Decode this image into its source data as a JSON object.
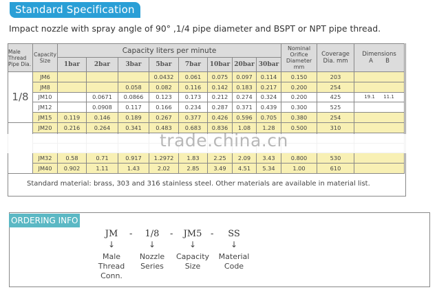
{
  "header": {
    "title": "Standard Specification",
    "intro": "Impact nozzle with spray angle of  90° ,1/4 pipe diameter and BSPT or NPT pipe thread."
  },
  "table": {
    "col_pipe": "Male Thread Pipe Dia.",
    "col_size": "Capacity Size",
    "capacity_group": "Capacity  liters per minute",
    "pressures": [
      "1bar",
      "2bar",
      "3bar",
      "5bar",
      "7bar",
      "10bar",
      "20bar",
      "30bar"
    ],
    "col_orifice": "Nominal Orifice Diameter mm",
    "col_coverage": "Coverage Dia. mm",
    "col_dims": "Dimensions",
    "dim_a": "A",
    "dim_b": "B",
    "pipe_group_1": "1/8",
    "rows": [
      {
        "size": "JM6",
        "v": [
          "",
          "",
          "",
          "0.0432",
          "0.061",
          "0.075",
          "0.097",
          "0.114"
        ],
        "orifice": "0.150",
        "coverage": "203",
        "a": "",
        "b": ""
      },
      {
        "size": "JM8",
        "v": [
          "",
          "",
          "0.058",
          "0.082",
          "0.116",
          "0.142",
          "0.183",
          "0.217"
        ],
        "orifice": "0.200",
        "coverage": "254",
        "a": "",
        "b": ""
      },
      {
        "size": "JM10",
        "v": [
          "",
          "0.0671",
          "0.0866",
          "0.123",
          "0.173",
          "0.212",
          "0.274",
          "0.324"
        ],
        "orifice": "0.200",
        "coverage": "425",
        "a": "19.1",
        "b": "11.1"
      },
      {
        "size": "JM12",
        "v": [
          "",
          "0.0908",
          "0.117",
          "0.166",
          "0.234",
          "0.287",
          "0.371",
          "0.439"
        ],
        "orifice": "0.300",
        "coverage": "525",
        "a": "",
        "b": ""
      },
      {
        "size": "JM15",
        "v": [
          "0.119",
          "0.146",
          "0.189",
          "0.267",
          "0.377",
          "0.426",
          "0.596",
          "0.705"
        ],
        "orifice": "0.380",
        "coverage": "254",
        "a": "",
        "b": ""
      },
      {
        "size": "JM20",
        "v": [
          "0.216",
          "0.264",
          "0.341",
          "0.483",
          "0.683",
          "0.836",
          "1.08",
          "1.28"
        ],
        "orifice": "0.500",
        "coverage": "310",
        "a": "",
        "b": ""
      },
      {
        "size": "",
        "v": [
          "",
          "",
          "",
          "",
          "",
          "",
          "",
          ""
        ],
        "orifice": "",
        "coverage": "",
        "a": "",
        "b": ""
      },
      {
        "size": "",
        "v": [
          "",
          "",
          "",
          "",
          "",
          "",
          "",
          ""
        ],
        "orifice": "",
        "coverage": "",
        "a": "",
        "b": ""
      },
      {
        "size": "JM32",
        "v": [
          "0.58",
          "0.71",
          "0.917",
          "1.2972",
          "1.83",
          "2.25",
          "2.09",
          "3.43"
        ],
        "orifice": "0.800",
        "coverage": "530",
        "a": "",
        "b": ""
      },
      {
        "size": "JM40",
        "v": [
          "0.902",
          "1.11",
          "1.43",
          "2.02",
          "2.85",
          "3.49",
          "4.51",
          "5.34"
        ],
        "orifice": "1.00",
        "coverage": "610",
        "a": "",
        "b": ""
      }
    ],
    "note": "Standard material: brass, 303 and 316 stainless steel. Other materials are available in material list."
  },
  "watermark": "trade.china.cn",
  "ordering": {
    "title": "ORDERING INFO",
    "codes": [
      "JM",
      "1/8",
      "JM5",
      "SS"
    ],
    "separator": "-",
    "arrow": "↓",
    "labels": [
      "Male Thread Conn.",
      "Nozzle Series",
      "Capacity Size",
      "Material Code"
    ]
  },
  "colors": {
    "banner": "#2a9fd6",
    "ordering_label": "#5bb8c4",
    "row_highlight": "#f8f0b4",
    "header_bg": "#dcdcdc"
  }
}
